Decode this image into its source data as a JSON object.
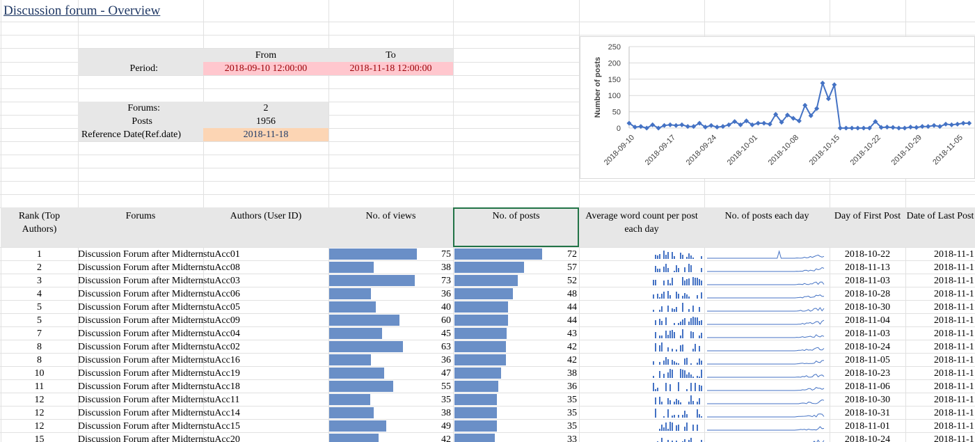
{
  "sheet": {
    "title": "Discussion forum - Overview",
    "period": {
      "label": "Period:",
      "from_label": "From",
      "to_label": "To",
      "from": "2018-09-10 12:00:00",
      "to": "2018-11-18 12:00:00"
    },
    "stats": {
      "forums_label": "Forums:",
      "forums": "2",
      "posts_label": "Posts",
      "posts": "1956",
      "ref_label": "Reference Date(Ref.date)",
      "ref_date": "2018-11-18"
    },
    "colors": {
      "databar": "#6a8fc7",
      "chart_line": "#4472c4",
      "header_bg": "#e7e7e7",
      "pink_bg": "#ffc7ce",
      "orange_bg": "#fcd5b4"
    }
  },
  "table": {
    "headers": [
      "Rank (Top Authors)",
      "Forums",
      "Authors (User ID)",
      "No. of views",
      "No. of posts",
      "Average word count per post each day",
      "No. of posts each day",
      "Day of First Post",
      "Date of Last Post"
    ],
    "rows": [
      {
        "rank": "1",
        "forum": "Discussion Forum after Midterm",
        "author": "stuAcc01",
        "views": 75,
        "posts": 72,
        "first": "2018-10-22",
        "last": "2018-11-1"
      },
      {
        "rank": "2",
        "forum": "Discussion Forum after Midterm",
        "author": "stuAcc08",
        "views": 38,
        "posts": 57,
        "first": "2018-11-13",
        "last": "2018-11-1"
      },
      {
        "rank": "3",
        "forum": "Discussion Forum after Midterm",
        "author": "stuAcc03",
        "views": 73,
        "posts": 52,
        "first": "2018-11-03",
        "last": "2018-11-1"
      },
      {
        "rank": "4",
        "forum": "Discussion Forum after Midterm",
        "author": "stuAcc06",
        "views": 36,
        "posts": 48,
        "first": "2018-10-28",
        "last": "2018-11-1"
      },
      {
        "rank": "5",
        "forum": "Discussion Forum after Midterm",
        "author": "stuAcc05",
        "views": 40,
        "posts": 44,
        "first": "2018-10-30",
        "last": "2018-11-1"
      },
      {
        "rank": "5",
        "forum": "Discussion Forum after Midterm",
        "author": "stuAcc09",
        "views": 60,
        "posts": 44,
        "first": "2018-11-04",
        "last": "2018-11-1"
      },
      {
        "rank": "7",
        "forum": "Discussion Forum after Midterm",
        "author": "stuAcc04",
        "views": 45,
        "posts": 43,
        "first": "2018-11-03",
        "last": "2018-11-1"
      },
      {
        "rank": "8",
        "forum": "Discussion Forum after Midterm",
        "author": "stuAcc02",
        "views": 63,
        "posts": 42,
        "first": "2018-10-24",
        "last": "2018-11-1"
      },
      {
        "rank": "8",
        "forum": "Discussion Forum after Midterm",
        "author": "stuAcc16",
        "views": 36,
        "posts": 42,
        "first": "2018-11-05",
        "last": "2018-11-1"
      },
      {
        "rank": "10",
        "forum": "Discussion Forum after Midterm",
        "author": "stuAcc19",
        "views": 47,
        "posts": 38,
        "first": "2018-10-23",
        "last": "2018-11-1"
      },
      {
        "rank": "11",
        "forum": "Discussion Forum after Midterm",
        "author": "stuAcc18",
        "views": 55,
        "posts": 36,
        "first": "2018-11-06",
        "last": "2018-11-1"
      },
      {
        "rank": "12",
        "forum": "Discussion Forum after Midterm",
        "author": "stuAcc11",
        "views": 35,
        "posts": 35,
        "first": "2018-10-30",
        "last": "2018-11-1"
      },
      {
        "rank": "12",
        "forum": "Discussion Forum after Midterm",
        "author": "stuAcc14",
        "views": 38,
        "posts": 35,
        "first": "2018-10-31",
        "last": "2018-11-1"
      },
      {
        "rank": "12",
        "forum": "Discussion Forum after Midterm",
        "author": "stuAcc15",
        "views": 49,
        "posts": 35,
        "first": "2018-11-01",
        "last": "2018-11-1"
      },
      {
        "rank": "15",
        "forum": "Discussion Forum after Midterm",
        "author": "stuAcc20",
        "views": 42,
        "posts": 33,
        "first": "2018-10-24",
        "last": "2018-11-1"
      }
    ]
  },
  "chart_data": {
    "type": "line",
    "title": "",
    "xlabel": "",
    "ylabel": "Number of posts",
    "ylim": [
      0,
      250
    ],
    "yticks": [
      0,
      50,
      100,
      150,
      200,
      250
    ],
    "xtick_labels": [
      "2018-09-10",
      "2018-09-17",
      "2018-09-24",
      "2018-10-01",
      "2018-10-08",
      "2018-10-15",
      "2018-10-22",
      "2018-10-29",
      "2018-11-05"
    ],
    "grid": true,
    "x_start": "2018-09-10",
    "series": [
      {
        "values": [
          15,
          3,
          5,
          0,
          10,
          0,
          8,
          10,
          8,
          10,
          5,
          5,
          15,
          3,
          8,
          3,
          5,
          10,
          20,
          10,
          22,
          10,
          15,
          15,
          12,
          42,
          18,
          40,
          30,
          22,
          70,
          38,
          60,
          138,
          90,
          133,
          0,
          0,
          0,
          0,
          0,
          0,
          20,
          2,
          3,
          2,
          0,
          0,
          3,
          2,
          5,
          5,
          8,
          5,
          12,
          10,
          12,
          15,
          15
        ]
      }
    ]
  }
}
